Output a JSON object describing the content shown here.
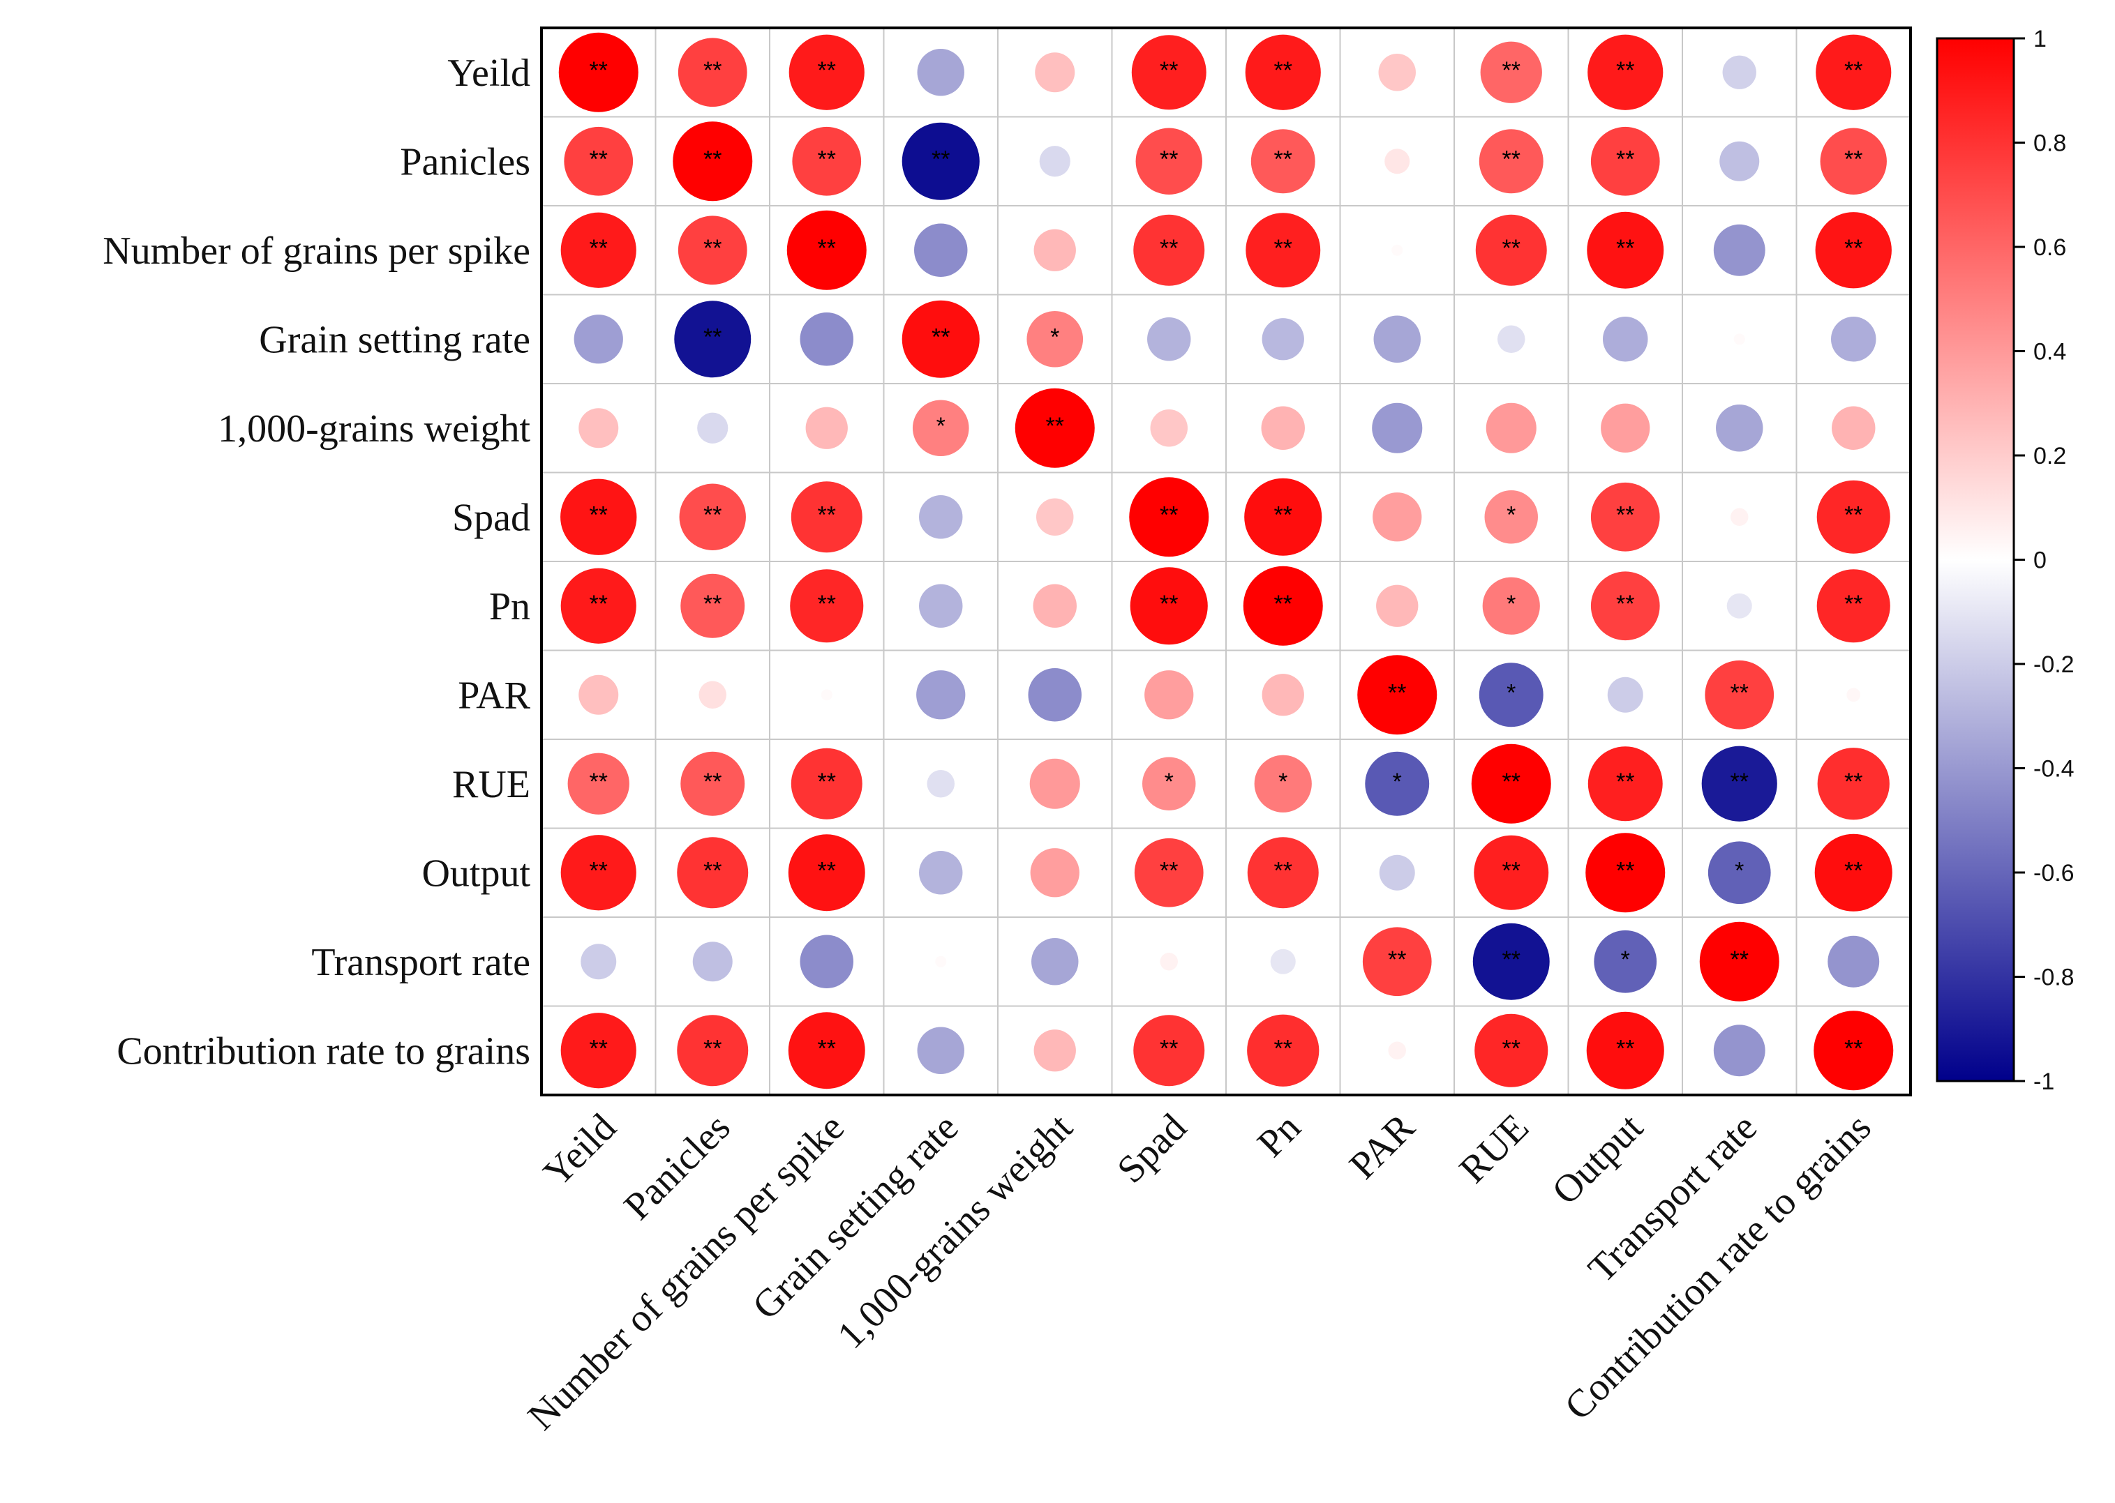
{
  "chart_data": {
    "type": "heatmap",
    "style": "correlation-circles",
    "title": "",
    "row_labels": [
      "Yeild",
      "Panicles",
      "Number of grains per spike",
      "Grain setting rate",
      "1,000-grains weight",
      "Spad",
      "Pn",
      "PAR",
      "RUE",
      "Output",
      "Transport rate",
      "Contribution rate to grains"
    ],
    "col_labels": [
      "Yeild",
      "Panicles",
      "Number of grains per spike",
      "Grain setting rate",
      "1,000-grains weight",
      "Spad",
      "Pn",
      "PAR",
      "RUE",
      "Output",
      "Transport rate",
      "Contribution rate to grains"
    ],
    "values": [
      [
        1.0,
        0.75,
        0.9,
        -0.35,
        0.25,
        0.88,
        0.9,
        0.22,
        0.6,
        0.9,
        -0.18,
        0.9
      ],
      [
        0.75,
        1.0,
        0.75,
        -0.95,
        -0.15,
        0.7,
        0.65,
        0.1,
        0.65,
        0.75,
        -0.25,
        0.7
      ],
      [
        0.9,
        0.75,
        1.0,
        -0.45,
        0.28,
        0.8,
        0.88,
        0.02,
        0.8,
        0.93,
        -0.42,
        0.92
      ],
      [
        -0.38,
        -0.93,
        -0.45,
        0.95,
        0.5,
        -0.3,
        -0.28,
        -0.35,
        -0.12,
        -0.32,
        0.02,
        -0.32
      ],
      [
        0.25,
        -0.15,
        0.28,
        0.5,
        1.0,
        0.22,
        0.3,
        -0.4,
        0.4,
        0.38,
        -0.35,
        0.3
      ],
      [
        0.92,
        0.7,
        0.8,
        -0.3,
        0.22,
        1.0,
        0.95,
        0.38,
        0.45,
        0.75,
        0.05,
        0.85
      ],
      [
        0.9,
        0.65,
        0.85,
        -0.3,
        0.3,
        0.95,
        1.0,
        0.28,
        0.52,
        0.75,
        -0.1,
        0.85
      ],
      [
        0.25,
        0.12,
        0.02,
        -0.38,
        -0.45,
        0.38,
        0.28,
        1.0,
        -0.65,
        -0.2,
        0.75,
        0.03
      ],
      [
        0.6,
        0.65,
        0.8,
        -0.12,
        0.4,
        0.45,
        0.52,
        -0.65,
        1.0,
        0.88,
        -0.9,
        0.82
      ],
      [
        0.9,
        0.8,
        0.93,
        -0.3,
        0.38,
        0.75,
        0.8,
        -0.2,
        0.88,
        1.0,
        -0.62,
        0.95
      ],
      [
        -0.2,
        -0.25,
        -0.45,
        0.02,
        -0.35,
        0.05,
        -0.1,
        0.75,
        -0.93,
        -0.62,
        1.0,
        -0.42
      ],
      [
        0.9,
        0.8,
        0.93,
        -0.35,
        0.28,
        0.8,
        0.82,
        0.05,
        0.85,
        0.95,
        -0.42,
        1.0
      ]
    ],
    "significance": [
      [
        "**",
        "**",
        "**",
        "",
        "",
        "**",
        "**",
        "",
        "**",
        "**",
        "",
        "**"
      ],
      [
        "**",
        "**",
        "**",
        "**",
        "",
        "**",
        "**",
        "",
        "**",
        "**",
        "",
        "**"
      ],
      [
        "**",
        "**",
        "**",
        "",
        "",
        "**",
        "**",
        "",
        "**",
        "**",
        "",
        "**"
      ],
      [
        "",
        "**",
        "",
        "**",
        "*",
        "",
        "",
        "",
        "",
        "",
        "",
        ""
      ],
      [
        "",
        "",
        "",
        "*",
        "**",
        "",
        "",
        "",
        "",
        "",
        "",
        ""
      ],
      [
        "**",
        "**",
        "**",
        "",
        "",
        "**",
        "**",
        "",
        "*",
        "**",
        "",
        "**"
      ],
      [
        "**",
        "**",
        "**",
        "",
        "",
        "**",
        "**",
        "",
        "*",
        "**",
        "",
        "**"
      ],
      [
        "",
        "",
        "",
        "",
        "",
        "",
        "",
        "**",
        "*",
        "",
        "**",
        ""
      ],
      [
        "**",
        "**",
        "**",
        "",
        "",
        "*",
        "*",
        "*",
        "**",
        "**",
        "**",
        "**"
      ],
      [
        "**",
        "**",
        "**",
        "",
        "",
        "**",
        "**",
        "",
        "**",
        "**",
        "*",
        "**"
      ],
      [
        "",
        "",
        "",
        "",
        "",
        "",
        "",
        "**",
        "**",
        "*",
        "**",
        ""
      ],
      [
        "**",
        "**",
        "**",
        "",
        "",
        "**",
        "**",
        "",
        "**",
        "**",
        "",
        "**"
      ]
    ],
    "colorbar": {
      "range": [
        -1,
        1
      ],
      "ticks": [
        1,
        0.8,
        0.6,
        0.4,
        0.2,
        0,
        -0.2,
        -0.4,
        -0.6,
        -0.8,
        -1
      ],
      "tick_labels": [
        "1",
        "0.8",
        "0.6",
        "0.4",
        "0.2",
        "0",
        "-0.2",
        "-0.4",
        "-0.6",
        "-0.8",
        "-1"
      ],
      "colors": {
        "high": "#ff0000",
        "mid": "#ffffff",
        "low": "#00008b"
      }
    },
    "grid": true,
    "legend": "right"
  }
}
